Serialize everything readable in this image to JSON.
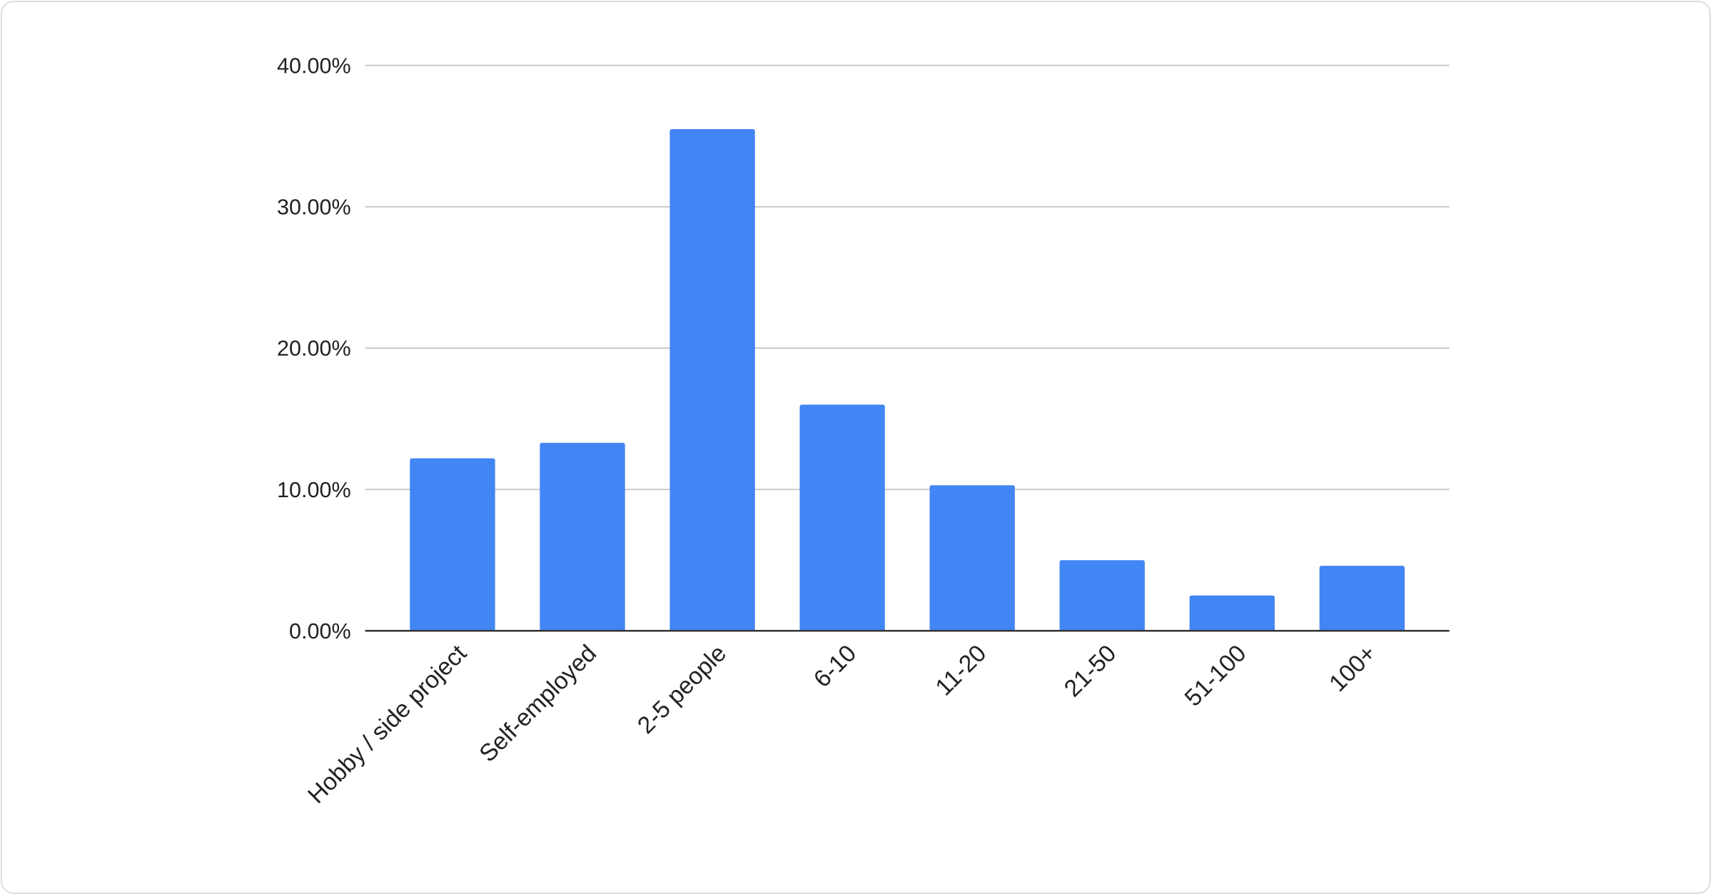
{
  "chart_data": {
    "type": "bar",
    "title": "",
    "xlabel": "",
    "ylabel": "",
    "categories": [
      "Hobby / side project",
      "Self-employed",
      "2-5 people",
      "6-10",
      "11-20",
      "21-50",
      "51-100",
      "100+"
    ],
    "values": [
      12.2,
      13.3,
      35.5,
      16.0,
      10.3,
      5.0,
      2.5,
      4.6
    ],
    "value_unit": "%",
    "ylim": [
      0,
      40
    ],
    "yticks": [
      "0.00%",
      "10.00%",
      "20.00%",
      "30.00%",
      "40.00%"
    ],
    "grid": true,
    "legend": "none",
    "bar_color": "#4285f4",
    "grid_color": "#cccccc",
    "axis_color": "#333333"
  }
}
